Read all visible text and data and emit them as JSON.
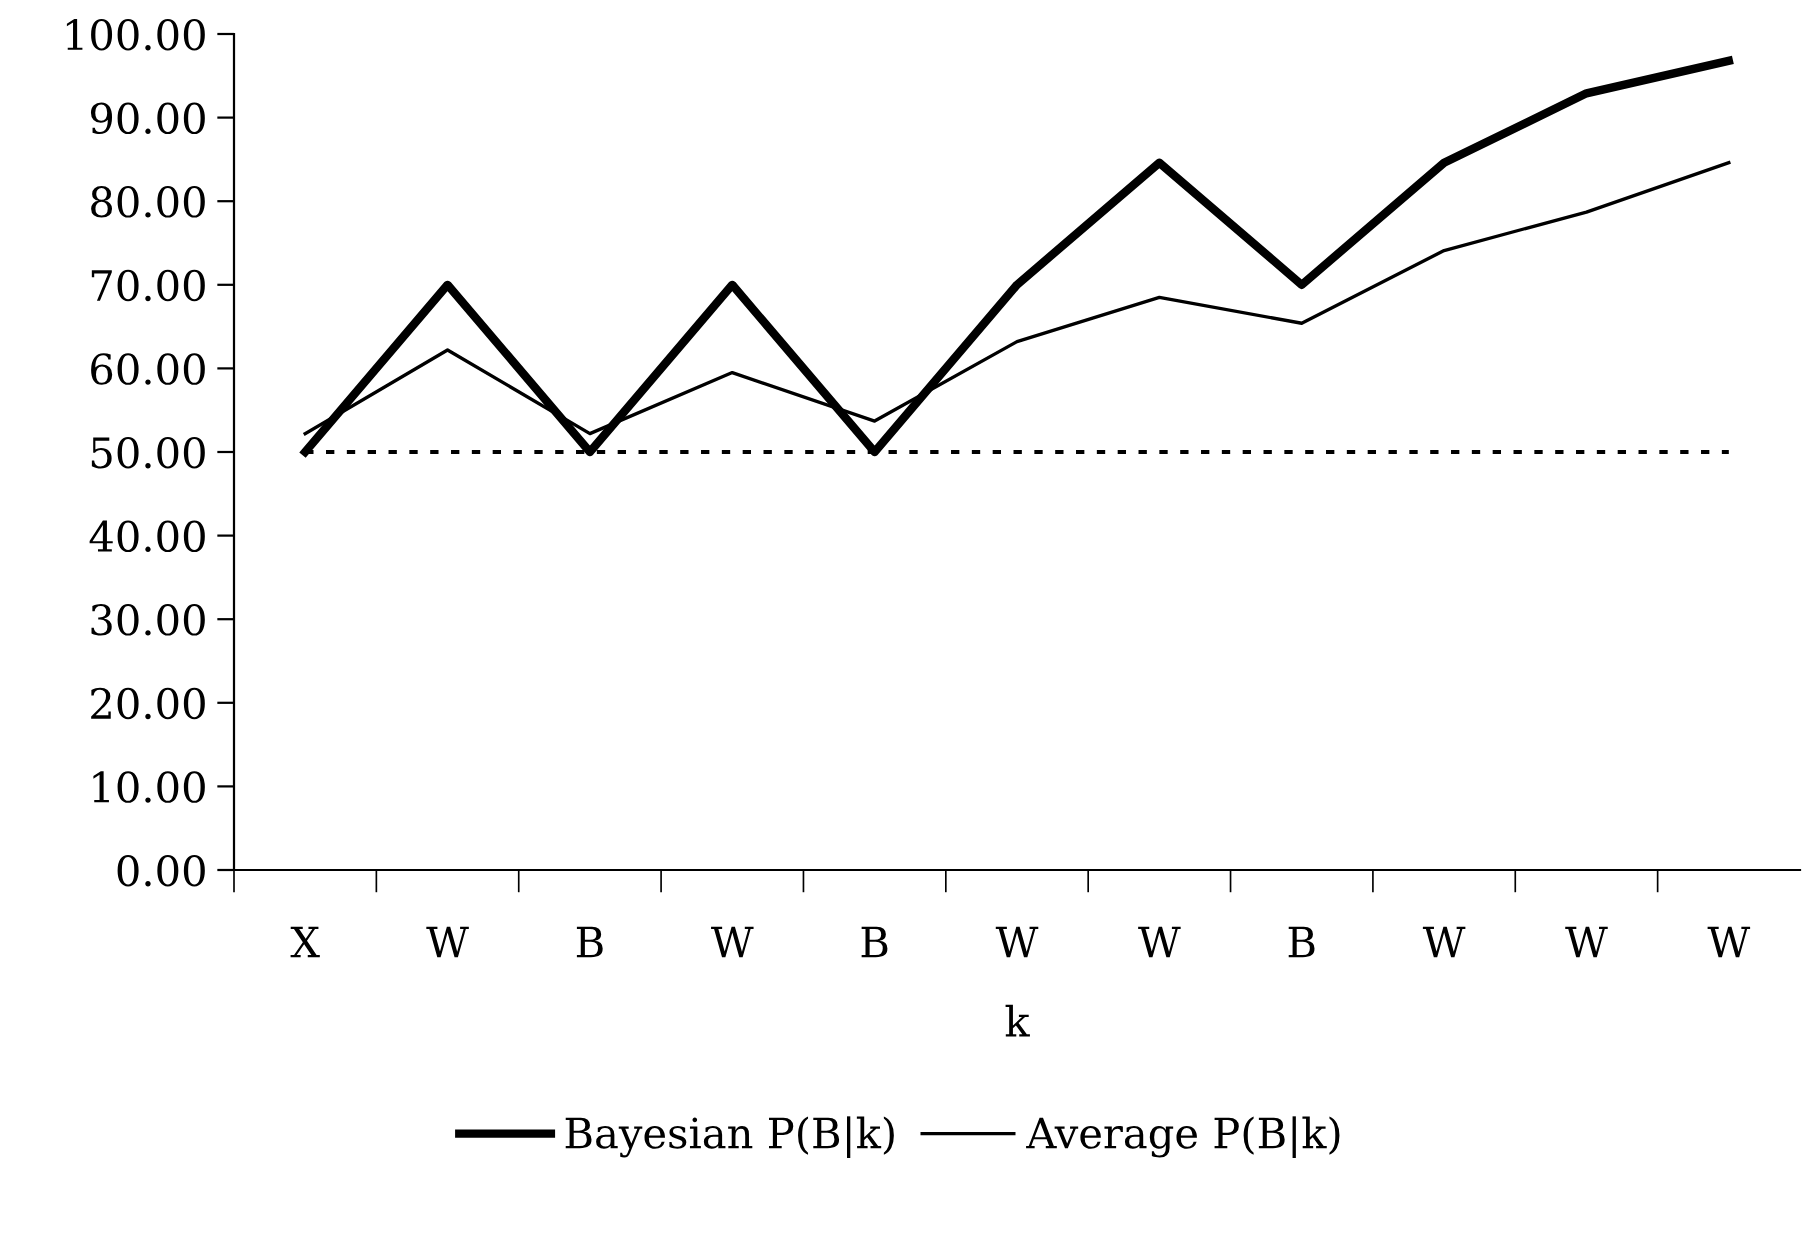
{
  "chart_data": {
    "type": "line",
    "xlabel": "k",
    "categories": [
      "X",
      "W",
      "B",
      "W",
      "B",
      "W",
      "W",
      "B",
      "W",
      "W",
      "W"
    ],
    "series": [
      {
        "name": "Bayesian P(B|k)",
        "color": "#000000",
        "line_style": "solid",
        "values": [
          50,
          70,
          50,
          70,
          50,
          70,
          84.6,
          70,
          84.6,
          92.9,
          96.8
        ]
      },
      {
        "name": "Average P(B|k)",
        "color": "#000000",
        "line_style": "solid",
        "values": [
          52.2,
          62.2,
          52.2,
          59.5,
          53.7,
          63.2,
          68.5,
          65.4,
          74.1,
          78.7,
          84.6
        ]
      },
      {
        "color": "#000000",
        "line_style": "dotted",
        "values": [
          50,
          50,
          50,
          50,
          50,
          50,
          50,
          50,
          50,
          50,
          50
        ]
      }
    ],
    "ylim": [
      0,
      100
    ],
    "yticks": [
      {
        "value": 0,
        "label": "0.00"
      },
      {
        "value": 10,
        "label": "10.00"
      },
      {
        "value": 20,
        "label": "20.00"
      },
      {
        "value": 30,
        "label": "30.00"
      },
      {
        "value": 40,
        "label": "40.00"
      },
      {
        "value": 50,
        "label": "50.00"
      },
      {
        "value": 60,
        "label": "60.00"
      },
      {
        "value": 70,
        "label": "70.00"
      },
      {
        "value": 80,
        "label": "80.00"
      },
      {
        "value": 90,
        "label": "90.00"
      },
      {
        "value": 100,
        "label": "100.00"
      }
    ],
    "grid": false,
    "legend": "bottom",
    "marker": "none"
  }
}
